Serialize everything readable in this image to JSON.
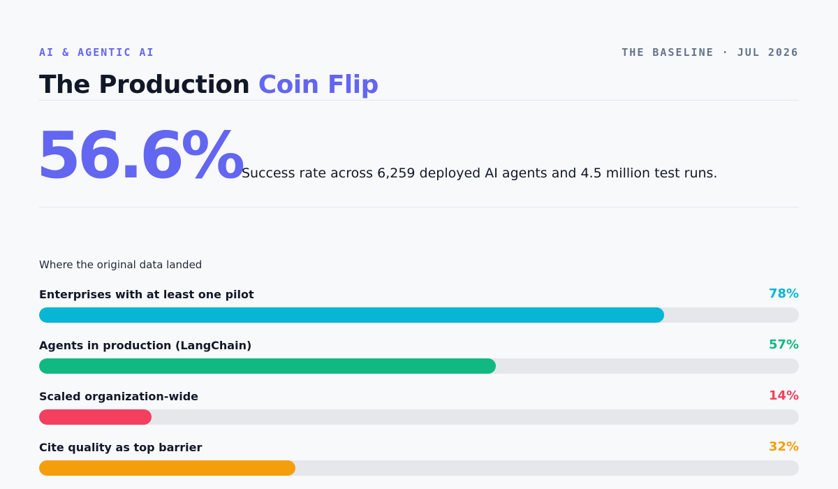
{
  "header": {
    "kicker": "AI & AGENTIC AI",
    "issue": "THE BASELINE · JUL 2026",
    "title_main": "The Production ",
    "title_accent": "Coin Flip"
  },
  "headline_stat": {
    "value": "56.6%",
    "description": "Success rate across 6,259 deployed AI agents and 4.5 million test runs."
  },
  "colors": {
    "accent": "#6366f1",
    "text": "#111827",
    "muted": "#64748b",
    "track": "#e5e7eb"
  },
  "chart_data": {
    "type": "bar",
    "orientation": "horizontal",
    "title": "Where the original data landed",
    "categories": [
      "Enterprises with at least one pilot",
      "Agents in production (LangChain)",
      "Scaled organization-wide",
      "Cite quality as top barrier"
    ],
    "values": [
      78,
      57,
      14,
      32
    ],
    "value_labels": [
      "78%",
      "57%",
      "14%",
      "32%"
    ],
    "bar_colors": [
      "#06b6d4",
      "#10b981",
      "#f43f5e",
      "#f59e0b"
    ],
    "xlim": [
      0,
      100
    ],
    "grid": false
  }
}
